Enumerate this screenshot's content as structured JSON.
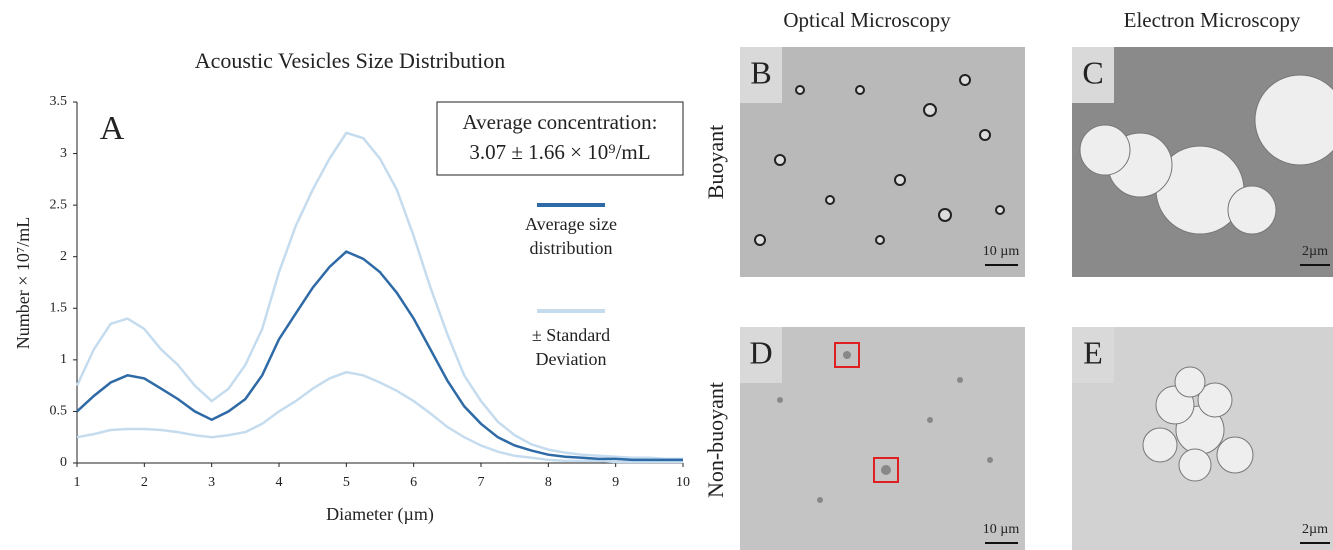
{
  "chart_data": {
    "type": "line",
    "title": "Acoustic Vesicles Size Distribution",
    "panel_label": "A",
    "xlabel": "Diameter (µm)",
    "ylabel": "Number × 10⁷/mL",
    "annotation": [
      "Average concentration:",
      "3.07 ± 1.66 × 10⁹/mL"
    ],
    "x": [
      1,
      1.25,
      1.5,
      1.75,
      2,
      2.25,
      2.5,
      2.75,
      3,
      3.25,
      3.5,
      3.75,
      4,
      4.25,
      4.5,
      4.75,
      5,
      5.25,
      5.5,
      5.75,
      6,
      6.25,
      6.5,
      6.75,
      7,
      7.25,
      7.5,
      7.75,
      8,
      8.25,
      8.5,
      8.75,
      9,
      9.25,
      9.5,
      9.75,
      10
    ],
    "series": [
      {
        "name": "Average size distribution",
        "color": "#2e6aa6",
        "values": [
          0.5,
          0.65,
          0.78,
          0.85,
          0.82,
          0.72,
          0.62,
          0.5,
          0.42,
          0.5,
          0.62,
          0.85,
          1.2,
          1.45,
          1.7,
          1.9,
          2.05,
          1.98,
          1.85,
          1.65,
          1.4,
          1.1,
          0.8,
          0.55,
          0.38,
          0.25,
          0.17,
          0.12,
          0.08,
          0.06,
          0.05,
          0.04,
          0.04,
          0.03,
          0.03,
          0.03,
          0.03
        ]
      },
      {
        "name": "± Standard Deviation",
        "color": "#c5dcef",
        "upper": [
          0.75,
          1.1,
          1.35,
          1.4,
          1.3,
          1.1,
          0.95,
          0.75,
          0.6,
          0.72,
          0.95,
          1.3,
          1.85,
          2.3,
          2.65,
          2.95,
          3.2,
          3.15,
          2.95,
          2.65,
          2.2,
          1.7,
          1.25,
          0.85,
          0.6,
          0.4,
          0.27,
          0.18,
          0.13,
          0.1,
          0.08,
          0.07,
          0.06,
          0.05,
          0.05,
          0.04,
          0.04
        ],
        "lower": [
          0.25,
          0.28,
          0.32,
          0.33,
          0.33,
          0.32,
          0.3,
          0.27,
          0.25,
          0.27,
          0.3,
          0.38,
          0.5,
          0.6,
          0.72,
          0.82,
          0.88,
          0.85,
          0.78,
          0.7,
          0.6,
          0.48,
          0.35,
          0.25,
          0.17,
          0.11,
          0.07,
          0.05,
          0.03,
          0.02,
          0.02,
          0.02,
          0.01,
          0.01,
          0.01,
          0.01,
          0.01
        ]
      }
    ],
    "xlim": [
      1,
      10
    ],
    "xticks": [
      1,
      2,
      3,
      4,
      5,
      6,
      7,
      8,
      9,
      10
    ],
    "ylim": [
      0,
      3.5
    ],
    "yticks": [
      0,
      0.5,
      1,
      1.5,
      2,
      2.5,
      3,
      3.5
    ]
  },
  "panels": {
    "columns": [
      "Optical Microscopy",
      "Electron Microscopy"
    ],
    "rows": [
      "Buoyant",
      "Non-buoyant"
    ],
    "images": [
      {
        "label": "B",
        "scale": "10 µm"
      },
      {
        "label": "C",
        "scale": "2µm"
      },
      {
        "label": "D",
        "scale": "10 µm"
      },
      {
        "label": "E",
        "scale": "2µm"
      }
    ]
  }
}
